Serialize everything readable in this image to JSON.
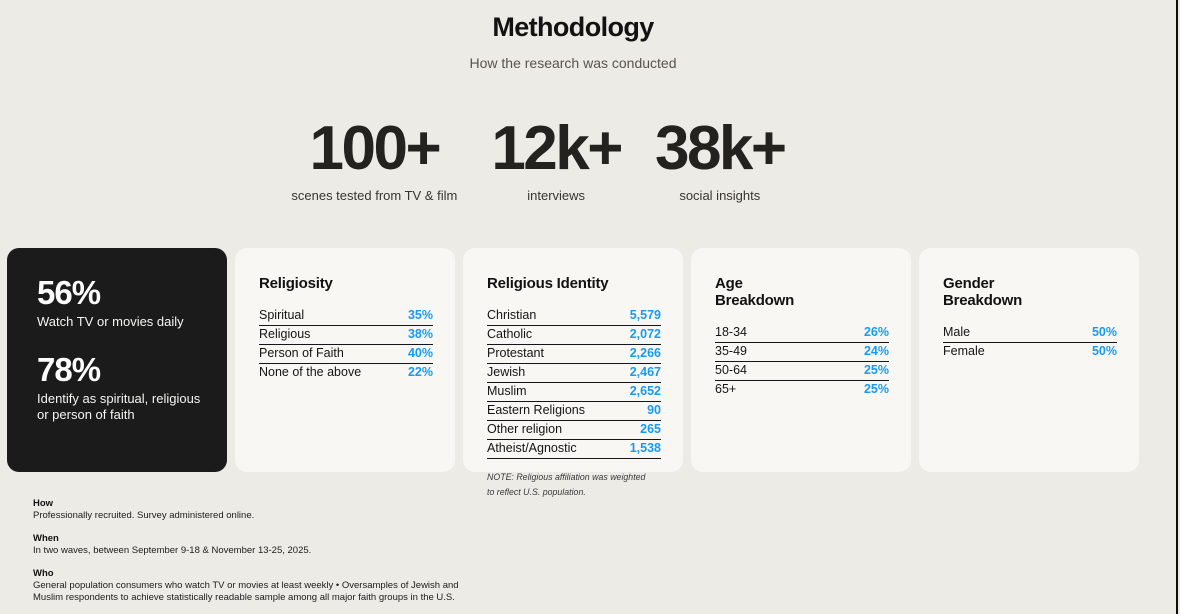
{
  "header": {
    "title": "Methodology",
    "subtitle": "How the research was conducted"
  },
  "stats": [
    {
      "value": "100+",
      "label": "scenes tested from TV & film"
    },
    {
      "value": "12k+",
      "label": "interviews"
    },
    {
      "value": "38k+",
      "label": "social insights"
    }
  ],
  "highlight_card": {
    "items": [
      {
        "value": "56%",
        "label": "Watch TV or movies daily"
      },
      {
        "value": "78%",
        "label": "Identify as spiritual, religious or person of faith"
      }
    ]
  },
  "tables": [
    {
      "title_lines": [
        "Religiosity"
      ],
      "rows": [
        {
          "label": "Spiritual",
          "value": "35%"
        },
        {
          "label": "Religious",
          "value": "38%"
        },
        {
          "label": "Person of Faith",
          "value": "40%"
        },
        {
          "label": "None of the above",
          "value": "22%"
        }
      ]
    },
    {
      "title_lines": [
        "Religious Identity"
      ],
      "rows": [
        {
          "label": "Christian",
          "value": "5,579"
        },
        {
          "label": "Catholic",
          "value": "2,072"
        },
        {
          "label": "Protestant",
          "value": "2,266"
        },
        {
          "label": "Jewish",
          "value": "2,467"
        },
        {
          "label": "Muslim",
          "value": "2,652"
        },
        {
          "label": "Eastern Religions",
          "value": "90"
        },
        {
          "label": "Other religion",
          "value": "265"
        },
        {
          "label": "Atheist/Agnostic",
          "value": "1,538"
        }
      ],
      "note": "NOTE: Religious affiliation was weighted to reflect U.S. population."
    },
    {
      "title_lines": [
        "Age",
        "Breakdown"
      ],
      "rows": [
        {
          "label": "18-34",
          "value": "26%"
        },
        {
          "label": "35-49",
          "value": "24%"
        },
        {
          "label": "50-64",
          "value": "25%"
        },
        {
          "label": "65+",
          "value": "25%"
        }
      ]
    },
    {
      "title_lines": [
        "Gender",
        "Breakdown"
      ],
      "rows": [
        {
          "label": "Male",
          "value": "50%"
        },
        {
          "label": "Female",
          "value": "50%"
        }
      ]
    }
  ],
  "footer": {
    "sections": [
      {
        "heading": "How",
        "text": "Professionally recruited. Survey administered online."
      },
      {
        "heading": "When",
        "text": "In two waves, between September 9-18 & November 13-25, 2025."
      },
      {
        "heading": "Who",
        "text": "General population consumers who watch TV or movies at least weekly • Oversamples of Jewish and Muslim respondents to achieve statistically readable sample among all major faith groups in the U.S."
      }
    ]
  },
  "colors": {
    "page_bg": "#edebe6",
    "card_bg": "#f8f7f4",
    "dark_card_bg": "#1b1b1b",
    "accent_blue": "#169bf4",
    "text_dark": "#1a1a1a"
  }
}
